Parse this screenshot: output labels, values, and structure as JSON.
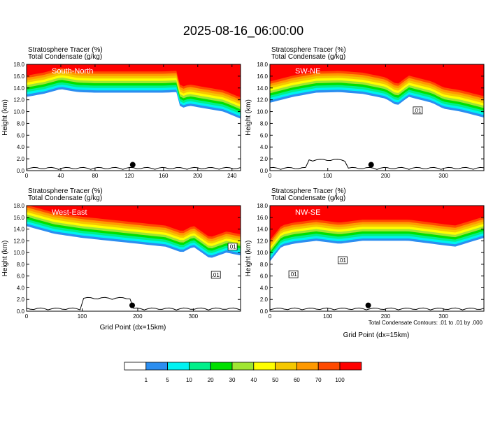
{
  "title": "2025-08-16_06:00:00",
  "panel_header_line1": "Stratosphere Tracer   (%)",
  "panel_header_line2": "Total Condensate   (g/kg)",
  "ylabel": "Height (km)",
  "xlabel": "Grid Point (dx=15km)",
  "contour_note": "Total Condensate Contours: .01 to .01 by .000",
  "contour_label": ".01",
  "colors": {
    "fill_levels": [
      "#ffffff",
      "#2c8ef0",
      "#00f2f2",
      "#00f08a",
      "#00e000",
      "#a0e632",
      "#ffff00",
      "#f5c800",
      "#ff9900",
      "#ff4a00",
      "#ff0000"
    ],
    "contour": "#000000",
    "marker": "#000000"
  },
  "chart_data": [
    {
      "type": "heatmap",
      "panel": "South-North",
      "xlim": [
        0,
        250
      ],
      "ylim": [
        0,
        18
      ],
      "xticks": [
        0,
        40,
        80,
        120,
        160,
        200,
        240
      ],
      "yticks": [
        0,
        2,
        4,
        6,
        8,
        10,
        12,
        14,
        16,
        18
      ],
      "tracer_bottom_profile": {
        "x": [
          0,
          20,
          40,
          60,
          80,
          100,
          120,
          140,
          160,
          175,
          180,
          190,
          210,
          230,
          250
        ],
        "y": [
          12.5,
          13.0,
          13.8,
          13.3,
          13.2,
          13.2,
          13.2,
          13.2,
          13.2,
          13.3,
          10.5,
          11.0,
          10.5,
          10.0,
          8.8
        ]
      },
      "marker": {
        "x": 124,
        "y": 1.0
      },
      "contour_labels": []
    },
    {
      "type": "heatmap",
      "panel": "SW-NE",
      "xlim": [
        0,
        370
      ],
      "ylim": [
        0,
        18
      ],
      "xticks": [
        0,
        100,
        200,
        300
      ],
      "yticks": [
        0,
        2,
        4,
        6,
        8,
        10,
        12,
        14,
        16,
        18
      ],
      "tracer_bottom_profile": {
        "x": [
          0,
          40,
          80,
          120,
          160,
          200,
          220,
          240,
          260,
          280,
          300,
          330,
          370
        ],
        "y": [
          11.5,
          12.5,
          13.2,
          13.3,
          13.0,
          12.2,
          11.0,
          12.5,
          12.0,
          11.5,
          10.5,
          10.0,
          9.0
        ]
      },
      "marker": {
        "x": 175,
        "y": 1.0
      },
      "contour_labels": [
        {
          "x": 255,
          "y": 10.2
        }
      ]
    },
    {
      "type": "heatmap",
      "panel": "West-East",
      "xlim": [
        0,
        385
      ],
      "ylim": [
        0,
        18
      ],
      "xticks": [
        0,
        100,
        200,
        300
      ],
      "yticks": [
        0,
        2,
        4,
        6,
        8,
        10,
        12,
        14,
        16,
        18
      ],
      "tracer_bottom_profile": {
        "x": [
          0,
          50,
          100,
          150,
          200,
          250,
          280,
          300,
          330,
          360,
          385
        ],
        "y": [
          14.5,
          13.2,
          12.5,
          12.0,
          11.5,
          11.0,
          10.0,
          11.0,
          9.0,
          10.0,
          9.5
        ]
      },
      "marker": {
        "x": 190,
        "y": 1.0
      },
      "contour_labels": [
        {
          "x": 370,
          "y": 11.0
        },
        {
          "x": 340,
          "y": 6.2
        }
      ]
    },
    {
      "type": "heatmap",
      "panel": "NW-SE",
      "xlim": [
        0,
        370
      ],
      "ylim": [
        0,
        18
      ],
      "xticks": [
        0,
        100,
        200,
        300
      ],
      "yticks": [
        0,
        2,
        4,
        6,
        8,
        10,
        12,
        14,
        16,
        18
      ],
      "tracer_bottom_profile": {
        "x": [
          0,
          20,
          40,
          80,
          120,
          160,
          200,
          240,
          280,
          320,
          370
        ],
        "y": [
          8.5,
          11.0,
          11.5,
          12.0,
          11.5,
          12.0,
          12.0,
          12.0,
          11.5,
          11.0,
          12.5
        ]
      },
      "marker": {
        "x": 170,
        "y": 1.0
      },
      "contour_labels": [
        {
          "x": 40,
          "y": 6.3
        },
        {
          "x": 125,
          "y": 8.7
        }
      ]
    }
  ],
  "colorbar": {
    "labels": [
      "1",
      "5",
      "10",
      "20",
      "30",
      "40",
      "50",
      "60",
      "70",
      "100"
    ]
  }
}
